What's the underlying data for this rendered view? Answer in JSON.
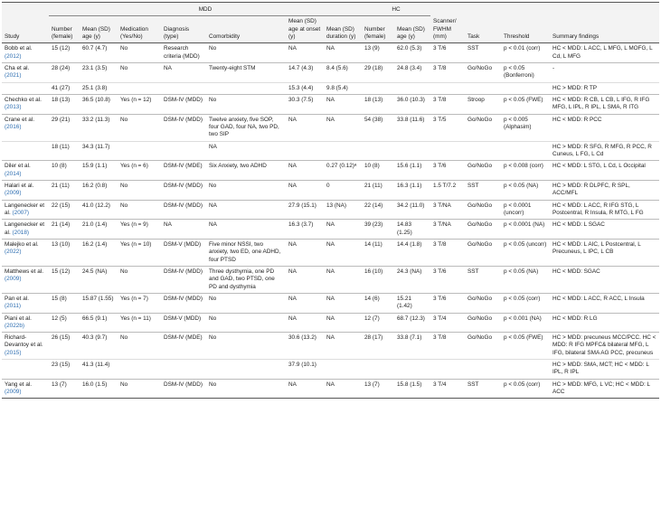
{
  "header": {
    "groups": {
      "mdd": "MDD",
      "hc": "HC"
    },
    "columns": {
      "study": "Study",
      "n": "Number (female)",
      "age": "Mean (SD) age (y)",
      "med": "Medication (Yes/No)",
      "dx": "Diagnosis (type)",
      "comorb": "Comorbidity",
      "onset": "Mean (SD) age at onset (y)",
      "duration": "Mean (SD) duration (y)",
      "hc_n": "Number (female)",
      "hc_age": "Mean (SD) age (y)",
      "scanner": "Scanner/ FWHM (mm)",
      "task": "Task",
      "threshold": "Threshold",
      "findings": "Summary findings"
    }
  },
  "rows": [
    {
      "study": "Bobb et al.",
      "year": "(2012)",
      "cells": {
        "n": "15 (12)",
        "age": "60.7 (4.7)",
        "med": "No",
        "dx": "Research criteria (MDD)",
        "comorb": "No",
        "onset": "NA",
        "duration": "NA",
        "hc_n": "13 (9)",
        "hc_age": "62.0 (5.3)",
        "scanner": "3 T/6",
        "task": "SST",
        "threshold": "p < 0.01 (corr)",
        "findings": "HC < MDD: L ACC, L MFG, L MOFG, L Cd, L MFG"
      }
    },
    {
      "study": "Cha et al.",
      "year": "(2021)",
      "cells": {
        "n": "28 (24)",
        "age": "23.1 (3.5)",
        "med": "No",
        "dx": "NA",
        "comorb": "Twenty-eight STM",
        "onset": "14.7 (4.3)",
        "duration": "8.4 (5.6)",
        "hc_n": "29 (18)",
        "hc_age": "24.8 (3.4)",
        "scanner": "3 T/8",
        "task": "Go/NoGo",
        "threshold": "p < 0.05 (Bonferroni)",
        "findings": "-"
      }
    },
    {
      "cells": {
        "n": "41 (27)",
        "age": "25.1 (3.8)",
        "onset": "15.3 (4.4)",
        "duration": "9.8 (5.4)",
        "findings": "HC > MDD: R TP"
      }
    },
    {
      "study": "Chechko et al.",
      "year": "(2013)",
      "cells": {
        "n": "18 (13)",
        "age": "36.5 (10.8)",
        "med": "Yes (n = 12)",
        "dx": "DSM-IV (MDD)",
        "comorb": "No",
        "onset": "30.3 (7.5)",
        "duration": "NA",
        "hc_n": "18 (13)",
        "hc_age": "36.0 (10.3)",
        "scanner": "3 T/8",
        "task": "Stroop",
        "threshold": "p < 0.05 (FWE)",
        "findings": "HC < MDD: R CB, L CB, L IFG, R IFG MFG, L IPL, R IPL, L SMA, R ITG"
      }
    },
    {
      "study": "Crane et al.",
      "year": "(2016)",
      "cells": {
        "n": "29 (21)",
        "age": "33.2 (11.3)",
        "med": "No",
        "dx": "DSM-IV (MDD)",
        "comorb": "Twelve anxiety, five SOP, four GAD, four NA, two PD, two SIP",
        "onset": "NA",
        "duration": "NA",
        "hc_n": "54 (38)",
        "hc_age": "33.8 (11.6)",
        "scanner": "3 T/5",
        "task": "Go/NoGo",
        "threshold": "p < 0.005 (Alphasim)",
        "findings": "HC < MDD: R PCC"
      }
    },
    {
      "cells": {
        "n": "18 (11)",
        "age": "34.3 (11.7)",
        "comorb": "NA",
        "findings": "HC > MDD: R SFG, R MFG, R PCC, R Cuneus, L FG, L Cd"
      }
    },
    {
      "study": "Diler et al.",
      "year": "(2014)",
      "cells": {
        "n": "10 (8)",
        "age": "15.9 (1.1)",
        "med": "Yes (n = 6)",
        "dx": "DSM-IV (MDE)",
        "comorb": "Six Anxiety, two ADHD",
        "onset": "NA",
        "duration": "0.27 (0.12)ᵃ",
        "hc_n": "10 (8)",
        "hc_age": "15.6 (1.1)",
        "scanner": "3 T/6",
        "task": "Go/NoGo",
        "threshold": "p < 0.008 (corr)",
        "findings": "HC < MDD: L STG, L Cd, L Occipital"
      }
    },
    {
      "study": "Halari et al.",
      "year": "(2009)",
      "cells": {
        "n": "21 (11)",
        "age": "16.2 (0.8)",
        "med": "No",
        "dx": "DSM-IV (MDD)",
        "comorb": "No",
        "onset": "NA",
        "duration": "0",
        "hc_n": "21 (11)",
        "hc_age": "16.3 (1.1)",
        "scanner": "1.5 T/7.2",
        "task": "SST",
        "threshold": "p < 0.05 (NA)",
        "findings": "HC > MDD: R DLPFC, R SPL, ACC/MFL"
      }
    },
    {
      "study": "Langenecker et al.",
      "year": "(2007)",
      "cells": {
        "n": "22 (15)",
        "age": "41.0 (12.2)",
        "med": "No",
        "dx": "DSM-IV (MDD)",
        "comorb": "NA",
        "onset": "27.9 (15.1)",
        "duration": "13 (NA)",
        "hc_n": "22 (14)",
        "hc_age": "34.2 (11.0)",
        "scanner": "3 T/NA",
        "task": "Go/NoGo",
        "threshold": "p < 0.0001 (uncorr)",
        "findings": "HC < MDD: L ACC, R IFG STG, L Postcentral, R Insula, R MTG, L FG"
      }
    },
    {
      "study": "Langenecker et al.",
      "year": "(2018)",
      "cells": {
        "n": "21 (14)",
        "age": "21.0 (1.4)",
        "med": "Yes (n = 9)",
        "dx": "NA",
        "comorb": "NA",
        "onset": "16.3 (3.7)",
        "duration": "NA",
        "hc_n": "39 (23)",
        "hc_age": "14.83 (1.25)",
        "scanner": "3 T/NA",
        "task": "Go/NoGo",
        "threshold": "p < 0.0001 (NA)",
        "findings": "HC < MDD: L SGAC"
      }
    },
    {
      "study": "Malejko et al.",
      "year": "(2022)",
      "cells": {
        "n": "13 (10)",
        "age": "16.2 (1.4)",
        "med": "Yes (n = 10)",
        "dx": "DSM-V (MDD)",
        "comorb": "Five minor NSSI, two anxiety, two ED, one ADHD, four PTSD",
        "onset": "NA",
        "duration": "NA",
        "hc_n": "14 (11)",
        "hc_age": "14.4 (1.8)",
        "scanner": "3 T/8",
        "task": "Go/NoGo",
        "threshold": "p < 0.05 (uncorr)",
        "findings": "HC < MDD: L AIC, L Postcentral, L Precuneus, L IPC, L CB"
      }
    },
    {
      "study": "Matthews et al.",
      "year": "(2009)",
      "cells": {
        "n": "15 (12)",
        "age": "24.5 (NA)",
        "med": "No",
        "dx": "DSM-IV (MDD)",
        "comorb": "Three dysthymia, one PD and GAD, two PTSD, one PD and dysthymia",
        "onset": "NA",
        "duration": "NA",
        "hc_n": "16 (10)",
        "hc_age": "24.3 (NA)",
        "scanner": "3 T/6",
        "task": "SST",
        "threshold": "p < 0.05 (NA)",
        "findings": "HC < MDD: SGAC"
      }
    },
    {
      "study": "Pan et al.",
      "year": "(2011)",
      "cells": {
        "n": "15 (8)",
        "age": "15.87 (1.55)",
        "med": "Yes (n = 7)",
        "dx": "DSM-IV (MDD)",
        "comorb": "No",
        "onset": "NA",
        "duration": "NA",
        "hc_n": "14 (6)",
        "hc_age": "15.21 (1.42)",
        "scanner": "3 T/6",
        "task": "Go/NoGo",
        "threshold": "p < 0.05 (corr)",
        "findings": "HC < MDD: L ACC, R ACC, L Insula"
      }
    },
    {
      "study": "Piani et al.",
      "year": "(2022b)",
      "cells": {
        "n": "12 (5)",
        "age": "66.5 (9.1)",
        "med": "Yes (n = 11)",
        "dx": "DSM-V (MDD)",
        "comorb": "No",
        "onset": "NA",
        "duration": "NA",
        "hc_n": "12 (7)",
        "hc_age": "68.7 (12.3)",
        "scanner": "3 T/4",
        "task": "Go/NoGo",
        "threshold": "p < 0.001 (NA)",
        "findings": "HC < MDD: R LG"
      }
    },
    {
      "study": "Richard-Devantoy et al.",
      "year": "(2015)",
      "cells": {
        "n": "26 (15)",
        "age": "40.3 (9.7)",
        "med": "No",
        "dx": "DSM-IV (MDE)",
        "comorb": "No",
        "onset": "30.6 (13.2)",
        "duration": "NA",
        "hc_n": "28 (17)",
        "hc_age": "33.8 (7.1)",
        "scanner": "3 T/8",
        "task": "Go/NoGo",
        "threshold": "p < 0.05 (FWE)",
        "findings": "HC > MDD: precuneus MCC/PCC. HC < MDD: R IFG MPFC& bilateral MFG, L IFG, bilateral SMA AG PCC, precuneus"
      }
    },
    {
      "cells": {
        "n": "23 (15)",
        "age": "41.3 (11.4)",
        "onset": "37.9 (10.1)",
        "findings": "HC > MDD: SMA, MCT; HC < MDD: L IPL, R IPL"
      }
    },
    {
      "study": "Yang et al.",
      "year": "(2009)",
      "cells": {
        "n": "13 (7)",
        "age": "16.0 (1.5)",
        "med": "No",
        "dx": "DSM-IV (MDD)",
        "comorb": "No",
        "onset": "NA",
        "duration": "NA",
        "hc_n": "13 (7)",
        "hc_age": "15.8 (1.5)",
        "scanner": "3 T/4",
        "task": "SST",
        "threshold": "p < 0.05 (corr)",
        "findings": "HC > MDD: MFG, L VC; HC < MDD: L ACC"
      }
    }
  ]
}
